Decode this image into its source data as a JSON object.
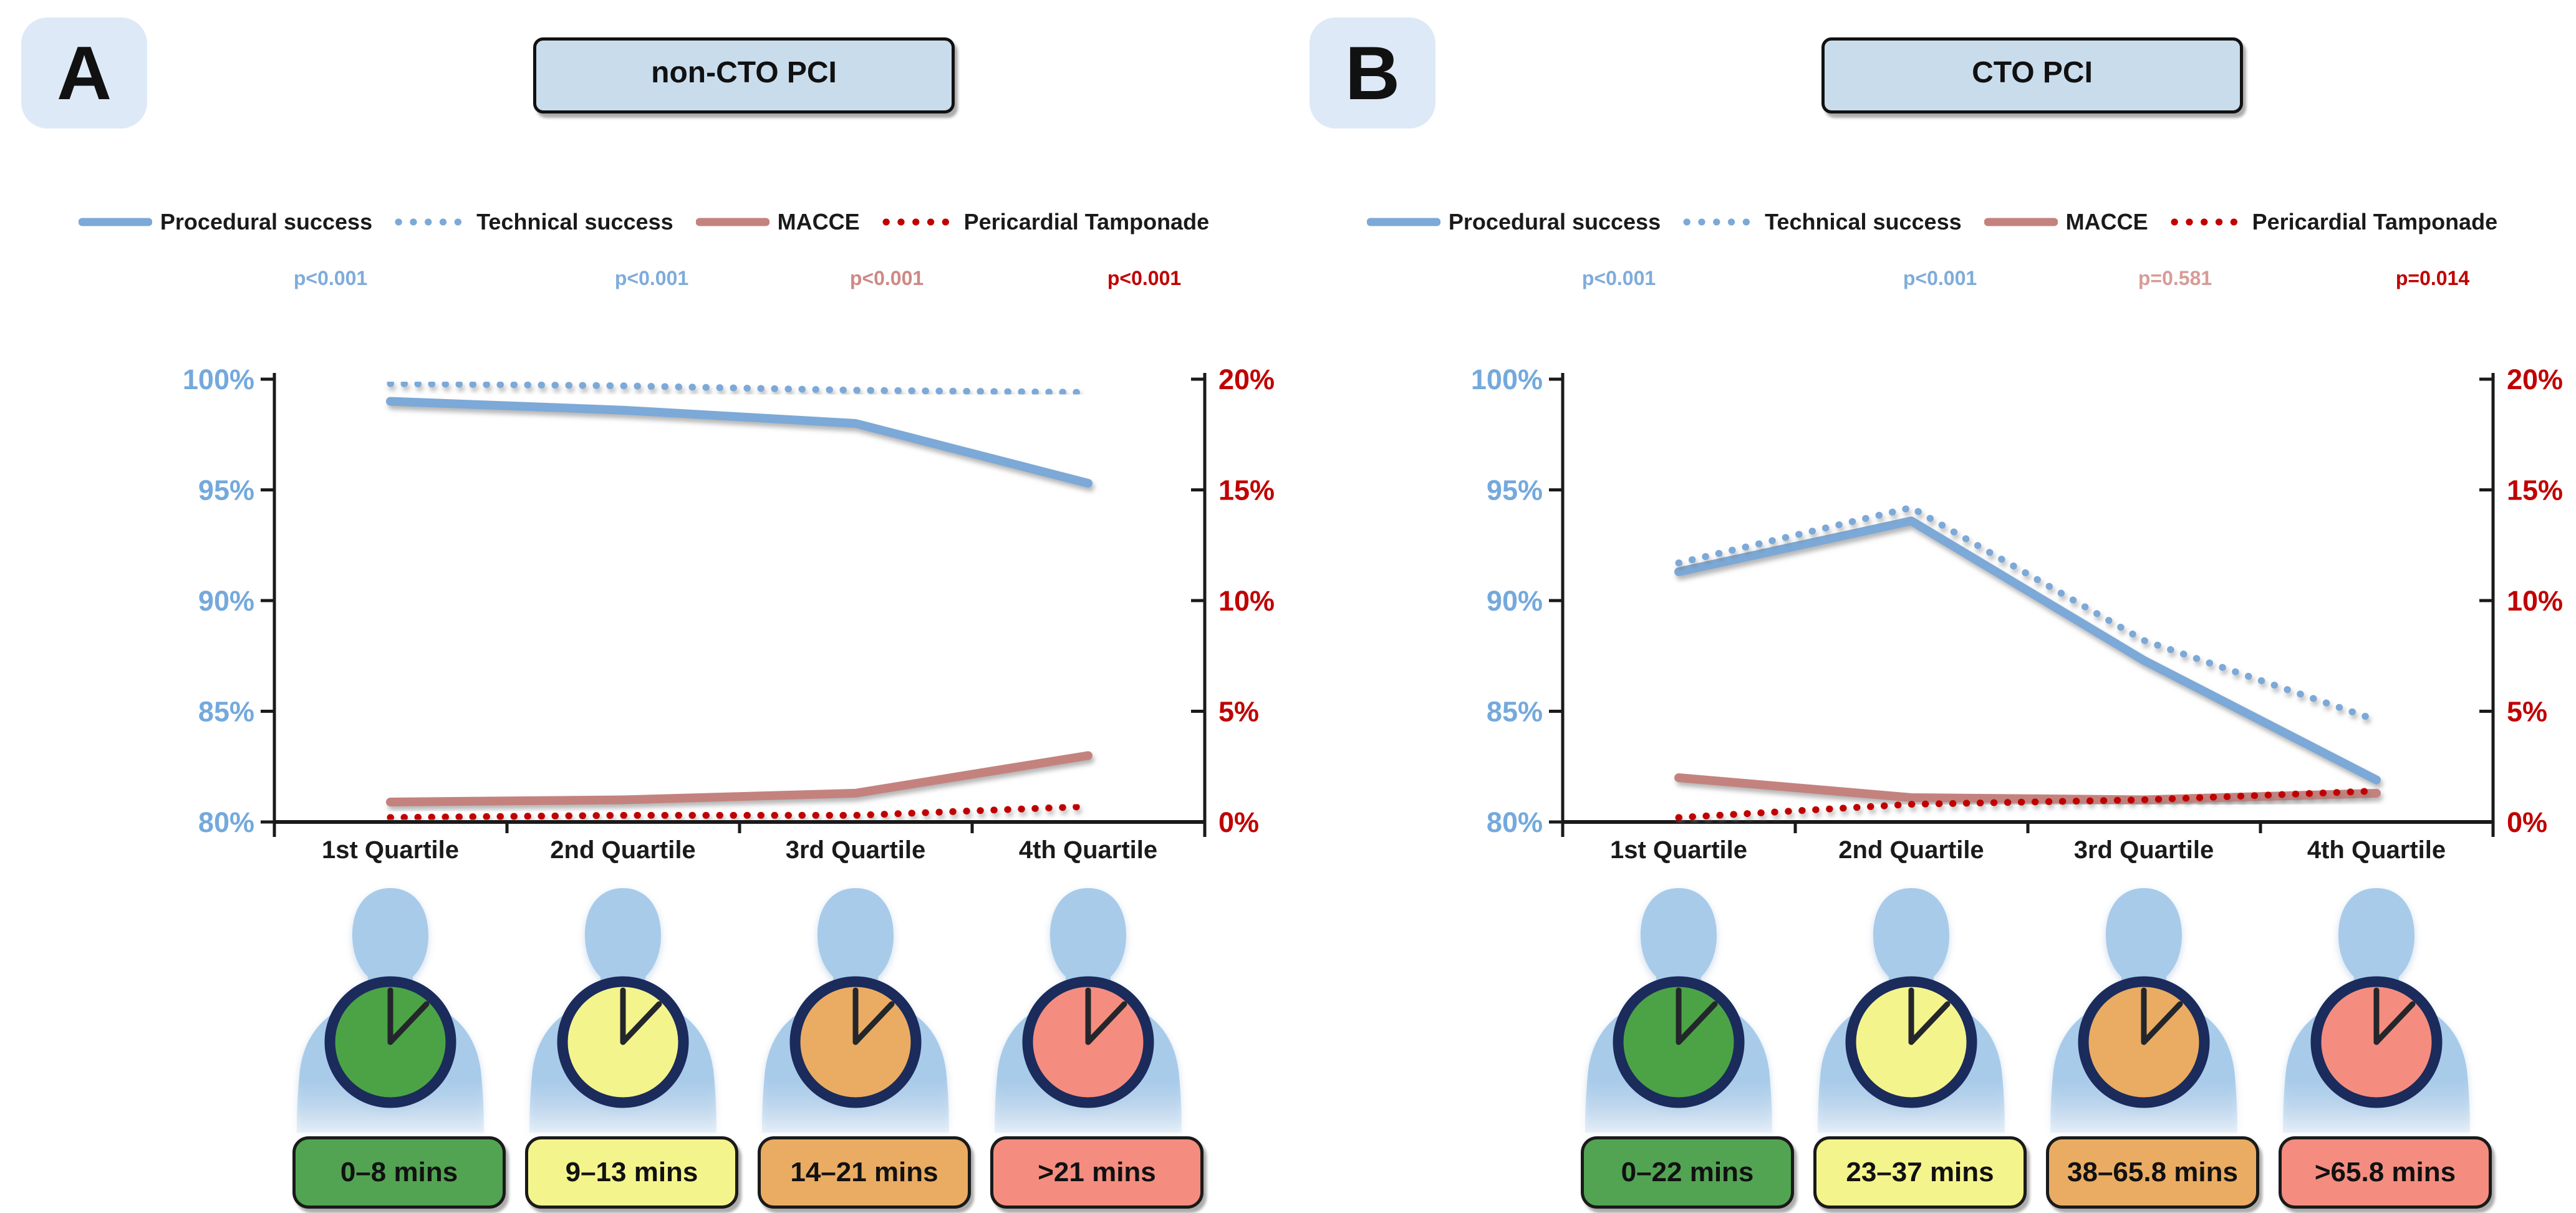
{
  "panels": [
    {
      "badge": "A",
      "title": "non-CTO PCI",
      "legend": [
        {
          "label": "Procedural success",
          "line": "solid",
          "color": "#7CA9D7"
        },
        {
          "label": "Technical success",
          "line": "dotted",
          "color": "#7CA9D7"
        },
        {
          "label": "MACCE",
          "line": "solid",
          "color": "#C4827E"
        },
        {
          "label": "Pericardial Tamponade",
          "line": "dotted",
          "color": "#C00000"
        }
      ],
      "p_values": [
        {
          "text": "p<0.001",
          "color": "#7FACDB"
        },
        {
          "text": "p<0.001",
          "color": "#7FACDB"
        },
        {
          "text": "p<0.001",
          "color": "#CE8985"
        },
        {
          "text": "p<0.001",
          "color": "#C00000"
        }
      ],
      "person_color": "#A8CBEA",
      "clock_ring": "#1B2B5B",
      "clock_faces": [
        "#4BA346",
        "#F4F48C",
        "#EAAC62",
        "#F48D80"
      ],
      "time_ranges": [
        {
          "label": "0–8 mins",
          "fill": "#52A452"
        },
        {
          "label": "9–13 mins",
          "fill": "#F4F48C"
        },
        {
          "label": "14–21 mins",
          "fill": "#EAAC62"
        },
        {
          "label": ">21 mins",
          "fill": "#F48D80"
        }
      ]
    },
    {
      "badge": "B",
      "title": "CTO PCI",
      "legend": [
        {
          "label": "Procedural success",
          "line": "solid",
          "color": "#7CA9D7"
        },
        {
          "label": "Technical success",
          "line": "dotted",
          "color": "#7CA9D7"
        },
        {
          "label": "MACCE",
          "line": "solid",
          "color": "#C4827E"
        },
        {
          "label": "Pericardial Tamponade",
          "line": "dotted",
          "color": "#C00000"
        }
      ],
      "p_values": [
        {
          "text": "p<0.001",
          "color": "#7FACDB"
        },
        {
          "text": "p<0.001",
          "color": "#7FACDB"
        },
        {
          "text": "p=0.581",
          "color": "#D79C98"
        },
        {
          "text": "p=0.014",
          "color": "#C00000"
        }
      ],
      "person_color": "#A8CBEA",
      "clock_ring": "#1B2B5B",
      "clock_faces": [
        "#4BA346",
        "#F4F48C",
        "#EAAC62",
        "#F48D80"
      ],
      "time_ranges": [
        {
          "label": "0–22 mins",
          "fill": "#52A452"
        },
        {
          "label": "23–37 mins",
          "fill": "#F4F48C"
        },
        {
          "label": "38–65.8 mins",
          "fill": "#EAAC62"
        },
        {
          "label": ">65.8 mins",
          "fill": "#F48D80"
        }
      ]
    }
  ],
  "chart_data": [
    {
      "type": "line",
      "title": "non-CTO PCI",
      "categories": [
        "1st Quartile",
        "2nd Quartile",
        "3rd Quartile",
        "4th Quartile"
      ],
      "left_axis": {
        "min": 80,
        "max": 100,
        "step": 5,
        "tick_labels": [
          "100%",
          "95%",
          "90%",
          "85%",
          "80%"
        ],
        "color": "#74A9DC"
      },
      "right_axis": {
        "min": 0,
        "max": 20,
        "step": 5,
        "tick_labels": [
          "20%",
          "15%",
          "10%",
          "5%",
          "0%"
        ],
        "color": "#C00000"
      },
      "grid": false,
      "legend_position": "top",
      "series": [
        {
          "name": "Procedural success",
          "axis": "left",
          "line": "solid",
          "color": "#7CA9D7",
          "values": [
            99.0,
            98.6,
            98.0,
            95.3
          ]
        },
        {
          "name": "Technical success",
          "axis": "left",
          "line": "dotted",
          "color": "#7CA9D7",
          "values": [
            99.8,
            99.7,
            99.5,
            99.4
          ]
        },
        {
          "name": "MACCE",
          "axis": "right",
          "line": "solid",
          "color": "#C4827E",
          "values": [
            0.9,
            1.0,
            1.3,
            3.0
          ]
        },
        {
          "name": "Pericardial Tamponade",
          "axis": "right",
          "line": "dotted",
          "color": "#C00000",
          "values": [
            0.2,
            0.3,
            0.3,
            0.7
          ]
        }
      ]
    },
    {
      "type": "line",
      "title": "CTO PCI",
      "categories": [
        "1st Quartile",
        "2nd Quartile",
        "3rd Quartile",
        "4th Quartile"
      ],
      "left_axis": {
        "min": 80,
        "max": 100,
        "step": 5,
        "tick_labels": [
          "100%",
          "95%",
          "90%",
          "85%",
          "80%"
        ],
        "color": "#74A9DC"
      },
      "right_axis": {
        "min": 0,
        "max": 20,
        "step": 5,
        "tick_labels": [
          "20%",
          "15%",
          "10%",
          "5%",
          "0%"
        ],
        "color": "#C00000"
      },
      "grid": false,
      "legend_position": "top",
      "series": [
        {
          "name": "Procedural success",
          "axis": "left",
          "line": "solid",
          "color": "#7CA9D7",
          "values": [
            91.3,
            93.6,
            87.3,
            81.9
          ]
        },
        {
          "name": "Technical success",
          "axis": "left",
          "line": "dotted",
          "color": "#7CA9D7",
          "values": [
            91.7,
            94.2,
            88.2,
            84.6
          ]
        },
        {
          "name": "MACCE",
          "axis": "right",
          "line": "solid",
          "color": "#C4827E",
          "values": [
            2.0,
            1.1,
            1.0,
            1.3
          ]
        },
        {
          "name": "Pericardial Tamponade",
          "axis": "right",
          "line": "dotted",
          "color": "#C00000",
          "values": [
            0.2,
            0.8,
            1.0,
            1.4
          ]
        }
      ]
    }
  ]
}
